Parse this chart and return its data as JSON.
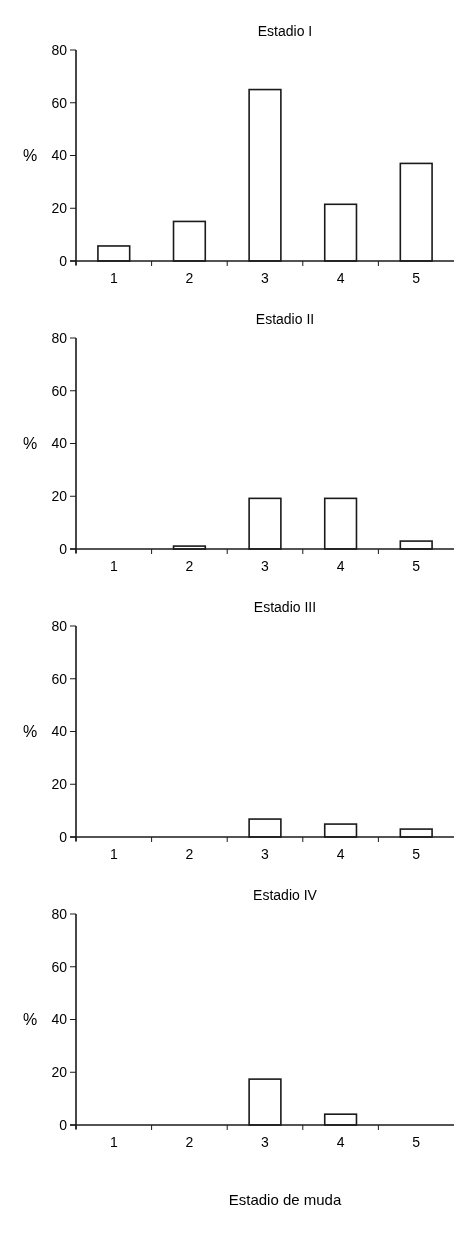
{
  "chart_data": [
    {
      "type": "bar",
      "title": "Estadio I",
      "ylabel": "%",
      "categories": [
        "1",
        "2",
        "3",
        "4",
        "5"
      ],
      "values": [
        5.7,
        15,
        65,
        21.5,
        37
      ],
      "color": "#ffffff",
      "ylim": [
        0,
        80
      ],
      "yticks": [
        0,
        20,
        40,
        60,
        80
      ]
    },
    {
      "type": "bar",
      "title": "Estadio II",
      "ylabel": "%",
      "categories": [
        "1",
        "2",
        "3",
        "4",
        "5"
      ],
      "values": [
        0,
        1.1,
        19.2,
        19.2,
        3
      ],
      "color": "#ffffff",
      "ylim": [
        0,
        80
      ],
      "yticks": [
        0,
        20,
        40,
        60,
        80
      ]
    },
    {
      "type": "bar",
      "title": "Estadio III",
      "ylabel": "%",
      "categories": [
        "1",
        "2",
        "3",
        "4",
        "5"
      ],
      "values": [
        0,
        0,
        6.8,
        4.9,
        3
      ],
      "color": "#ffffff",
      "ylim": [
        0,
        80
      ],
      "yticks": [
        0,
        20,
        40,
        60,
        80
      ]
    },
    {
      "type": "bar",
      "title": "Estadio IV",
      "ylabel": "%",
      "xlabel": "Estadio de muda",
      "categories": [
        "1",
        "2",
        "3",
        "4",
        "5"
      ],
      "values": [
        0,
        0,
        17.4,
        4.1,
        0
      ],
      "color": "#ffffff",
      "ylim": [
        0,
        80
      ],
      "yticks": [
        0,
        20,
        40,
        60,
        80
      ]
    }
  ]
}
